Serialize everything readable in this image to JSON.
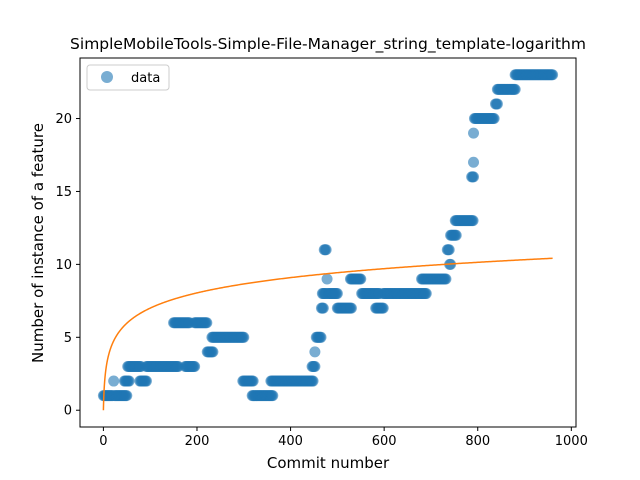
{
  "chart_data": {
    "type": "scatter",
    "title": "SimpleMobileTools-Simple-File-Manager_string_template-logarithm",
    "xlabel": "Commit number",
    "ylabel": "Number of instance of a feature",
    "xlim": [
      -50,
      1010
    ],
    "ylim": [
      -1.15,
      24.15
    ],
    "xticks": [
      0,
      200,
      400,
      600,
      800,
      1000
    ],
    "yticks": [
      0,
      5,
      10,
      15,
      20
    ],
    "grid": false,
    "legend": {
      "position": "top-left",
      "entries": [
        "data"
      ]
    },
    "colors": {
      "data": "#1f77b4",
      "fit": "#ff7f0e"
    },
    "series": [
      {
        "name": "data",
        "kind": "scatter",
        "segments": [
          [
            0,
            20,
            1
          ],
          [
            22,
            22,
            2
          ],
          [
            24,
            50,
            1
          ],
          [
            45,
            55,
            2
          ],
          [
            52,
            80,
            3
          ],
          [
            78,
            92,
            2
          ],
          [
            92,
            160,
            3
          ],
          [
            150,
            185,
            6
          ],
          [
            175,
            195,
            3
          ],
          [
            195,
            222,
            6
          ],
          [
            222,
            235,
            4
          ],
          [
            232,
            300,
            5
          ],
          [
            298,
            320,
            2
          ],
          [
            318,
            362,
            1
          ],
          [
            358,
            448,
            2
          ],
          [
            446,
            452,
            3
          ],
          [
            452,
            452,
            4
          ],
          [
            455,
            465,
            5
          ],
          [
            466,
            470,
            7
          ],
          [
            468,
            476,
            8
          ],
          [
            472,
            476,
            11
          ],
          [
            478,
            478,
            9
          ],
          [
            480,
            500,
            8
          ],
          [
            500,
            530,
            7
          ],
          [
            528,
            550,
            9
          ],
          [
            552,
            590,
            8
          ],
          [
            582,
            598,
            7
          ],
          [
            598,
            690,
            8
          ],
          [
            680,
            732,
            9
          ],
          [
            735,
            740,
            11
          ],
          [
            740,
            742,
            10
          ],
          [
            742,
            755,
            12
          ],
          [
            752,
            790,
            13
          ],
          [
            787,
            791,
            16
          ],
          [
            791,
            791,
            17
          ],
          [
            791,
            791,
            19
          ],
          [
            793,
            835,
            20
          ],
          [
            838,
            842,
            21
          ],
          [
            842,
            880,
            22
          ],
          [
            880,
            960,
            23
          ]
        ]
      },
      {
        "name": "",
        "kind": "line",
        "function": "y = 1.5169 * ln(x + 1)",
        "x_range": [
          0,
          960
        ]
      }
    ]
  }
}
